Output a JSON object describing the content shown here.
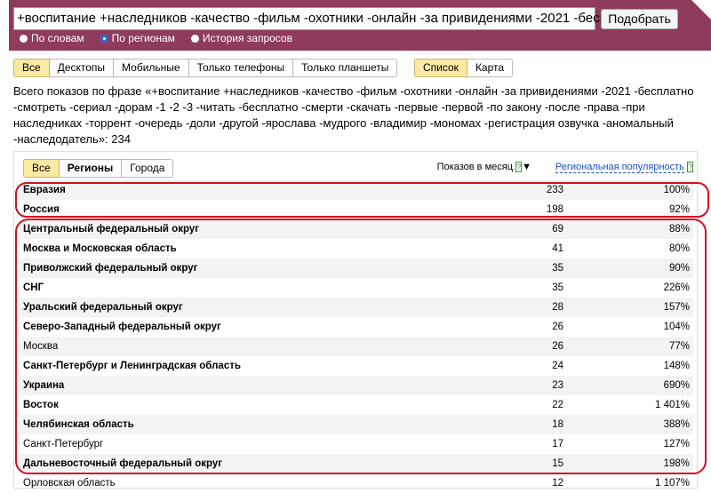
{
  "search": {
    "query": "+воспитание +наследников -качество -фильм -охотники -онлайн -за привидениями -2021 -бесп",
    "button": "Подобрать",
    "modes": [
      {
        "label": "По словам",
        "selected": false
      },
      {
        "label": "По регионам",
        "selected": true
      },
      {
        "label": "История запросов",
        "selected": false
      }
    ]
  },
  "device_tabs": {
    "items": [
      "Все",
      "Десктопы",
      "Мобильные",
      "Только телефоны",
      "Только планшеты"
    ],
    "active": 0
  },
  "view_tabs": {
    "items": [
      "Список",
      "Карта"
    ],
    "active": 0
  },
  "summary": "Всего показов по фразе «+воспитание +наследников -качество -фильм -охотники -онлайн -за привидениями -2021 -бесплатно -смотреть -сериал -дорам -1 -2 -3 -читать -бесплатно -смерти -скачать -первые -первой -по закону -после -права -при наследниках -торрент -очередь -доли -другой -ярослава -мудрого -владимир -мономах -регистрация озвучка -аномальный -наследодатель»: 234",
  "table": {
    "tabs": [
      "Все",
      "Регионы",
      "Города"
    ],
    "active_tab": 0,
    "columns": {
      "shows": "Показов в месяц",
      "popularity": "Региональная популярность"
    },
    "rows": [
      {
        "region": "Евразия",
        "shows": 233,
        "popularity": "100%",
        "bold": true
      },
      {
        "region": "Россия",
        "shows": 198,
        "popularity": "92%",
        "bold": true
      },
      {
        "region": "Центральный федеральный округ",
        "shows": 69,
        "popularity": "88%",
        "bold": true
      },
      {
        "region": "Москва и Московская область",
        "shows": 41,
        "popularity": "80%",
        "bold": true
      },
      {
        "region": "Приволжский федеральный округ",
        "shows": 35,
        "popularity": "90%",
        "bold": true
      },
      {
        "region": "СНГ",
        "shows": 35,
        "popularity": "226%",
        "bold": true
      },
      {
        "region": "Уральский федеральный округ",
        "shows": 28,
        "popularity": "157%",
        "bold": true
      },
      {
        "region": "Северо-Западный федеральный округ",
        "shows": 26,
        "popularity": "104%",
        "bold": true
      },
      {
        "region": "Москва",
        "shows": 26,
        "popularity": "77%",
        "bold": false
      },
      {
        "region": "Санкт-Петербург и Ленинградская область",
        "shows": 24,
        "popularity": "148%",
        "bold": true
      },
      {
        "region": "Украина",
        "shows": 23,
        "popularity": "690%",
        "bold": true
      },
      {
        "region": "Восток",
        "shows": 22,
        "popularity": "1 401%",
        "bold": true
      },
      {
        "region": "Челябинская область",
        "shows": 18,
        "popularity": "388%",
        "bold": true
      },
      {
        "region": "Санкт-Петербург",
        "shows": 17,
        "popularity": "127%",
        "bold": false
      },
      {
        "region": "Дальневосточный федеральный округ",
        "shows": 15,
        "popularity": "198%",
        "bold": true
      },
      {
        "region": "Орловская область",
        "shows": 12,
        "popularity": "1 107%",
        "bold": false
      }
    ]
  }
}
